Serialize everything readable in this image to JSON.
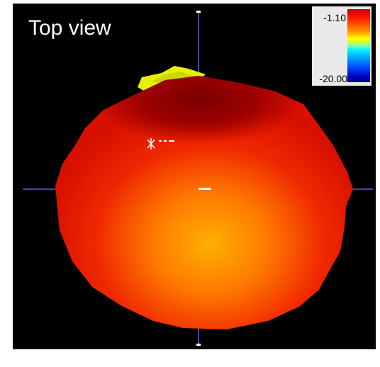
{
  "view_title": "Top view",
  "color_scale": {
    "max_label": "-1.10",
    "min_label": "-20.00",
    "gradient_colors": [
      "#c40000",
      "#ff1000",
      "#ff5a00",
      "#ffa400",
      "#ffff00",
      "#7dffb8",
      "#00f0ff",
      "#0048ff",
      "#000080"
    ]
  },
  "colors": {
    "background": "#000000",
    "axis": "#5a5aff",
    "body_dark": "#8a0000",
    "body_mid": "#e21a00",
    "body_light": "#ff8a00",
    "highlight": "#e6f000"
  }
}
